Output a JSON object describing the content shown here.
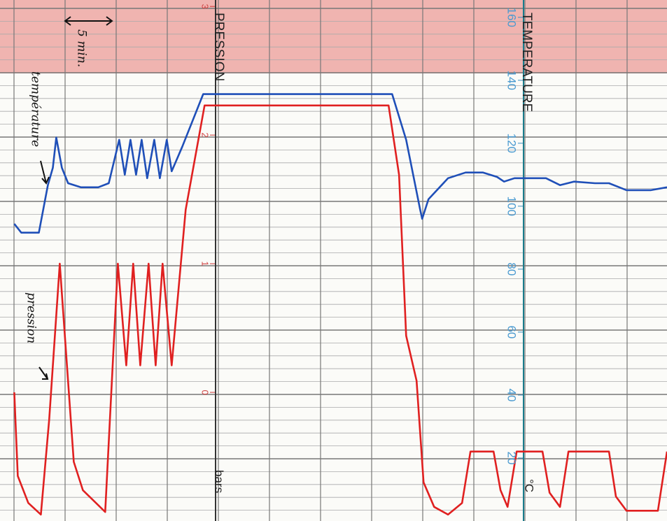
{
  "chart_data": {
    "type": "line",
    "labels": {
      "pressure_axis": "PRESSION",
      "pressure_unit": "bars",
      "temperature_axis": "TEMPERATURE",
      "temperature_unit": "°C"
    },
    "annotations": {
      "interval": "5 min.",
      "temperature_curve": "température",
      "pressure_curve": "pression"
    },
    "xlim": [
      -1.4,
      63.9
    ],
    "ylim": [
      -1,
      3.05
    ],
    "yticks": [
      0,
      1,
      2,
      3
    ],
    "y2lim": [
      0,
      165.5
    ],
    "y2ticks": [
      20,
      40,
      60,
      80,
      100,
      120,
      140,
      160
    ],
    "grid": true,
    "series": [
      {
        "name": "température",
        "color": "#1f4fb8",
        "axis": "y2",
        "x": [
          0,
          0.68,
          2.4,
          3.29,
          3.77,
          4.11,
          4.66,
          5.27,
          6.51,
          8.22,
          9.25,
          10.27,
          10.82,
          11.37,
          11.92,
          12.47,
          13.01,
          13.7,
          14.25,
          14.93,
          15.41,
          16.44,
          18.49,
          19.86,
          36.99,
          38.36,
          39.73,
          39.93,
          40.55,
          42.47,
          44.18,
          45.89,
          47.26,
          47.95,
          48.97,
          52.05,
          53.42,
          54.79,
          56.85,
          58.22,
          59.93,
          62.33,
          63.9
        ],
        "values": [
          94.4,
          91.6,
          91.6,
          106.7,
          112.2,
          121.8,
          112.2,
          107.3,
          106,
          106,
          107.3,
          121.1,
          110,
          121.1,
          110,
          121.1,
          108.9,
          121.1,
          108.9,
          121.1,
          111.1,
          118.9,
          135.6,
          135.6,
          135.6,
          121.1,
          98.9,
          96,
          102.2,
          108.9,
          110.7,
          110.7,
          109.3,
          107.8,
          108.9,
          108.9,
          106.7,
          107.8,
          107.3,
          107.3,
          105.1,
          105.1,
          106
        ]
      },
      {
        "name": "pression",
        "color": "#e02020",
        "axis": "y",
        "x": [
          0,
          0.34,
          1.37,
          2.6,
          3.42,
          4.45,
          5.82,
          6.71,
          8.9,
          10.14,
          10.96,
          11.64,
          12.33,
          13.15,
          13.84,
          14.52,
          15.41,
          16.78,
          18.63,
          36.64,
          37.67,
          38.36,
          39.38,
          40.07,
          41.1,
          42.47,
          43.84,
          44.66,
          46.92,
          47.6,
          48.29,
          49.18,
          51.71,
          52.4,
          53.42,
          54.25,
          58.22,
          58.9,
          59.93,
          63.01,
          63.9
        ],
        "values": [
          0,
          -0.65,
          -0.86,
          -0.95,
          -0.21,
          1,
          -0.54,
          -0.76,
          -0.93,
          1,
          0.21,
          1,
          0.21,
          1,
          0.21,
          1,
          0.21,
          1.42,
          2.23,
          2.23,
          1.69,
          0.44,
          0.09,
          -0.7,
          -0.89,
          -0.95,
          -0.86,
          -0.46,
          -0.46,
          -0.76,
          -0.89,
          -0.46,
          -0.46,
          -0.78,
          -0.89,
          -0.46,
          -0.46,
          -0.81,
          -0.92,
          -0.92,
          -0.46
        ]
      }
    ]
  }
}
